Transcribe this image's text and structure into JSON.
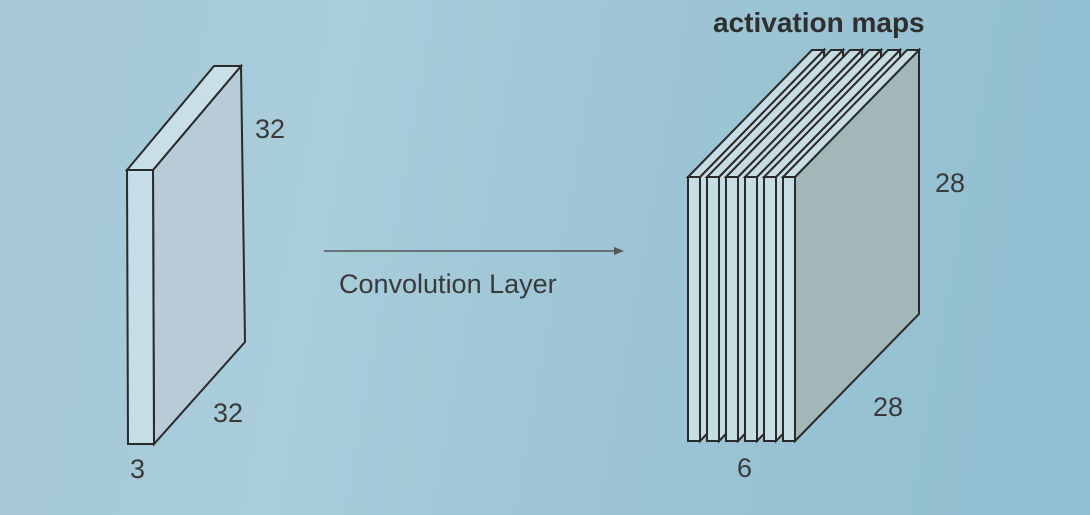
{
  "input_volume": {
    "height_label": "32",
    "width_label": "32",
    "depth_label": "3"
  },
  "arrow": {
    "label": "Convolution Layer"
  },
  "output_volume": {
    "title": "activation maps",
    "height_label": "28",
    "width_label": "28",
    "depth_label": "6",
    "map_count": 6
  }
}
